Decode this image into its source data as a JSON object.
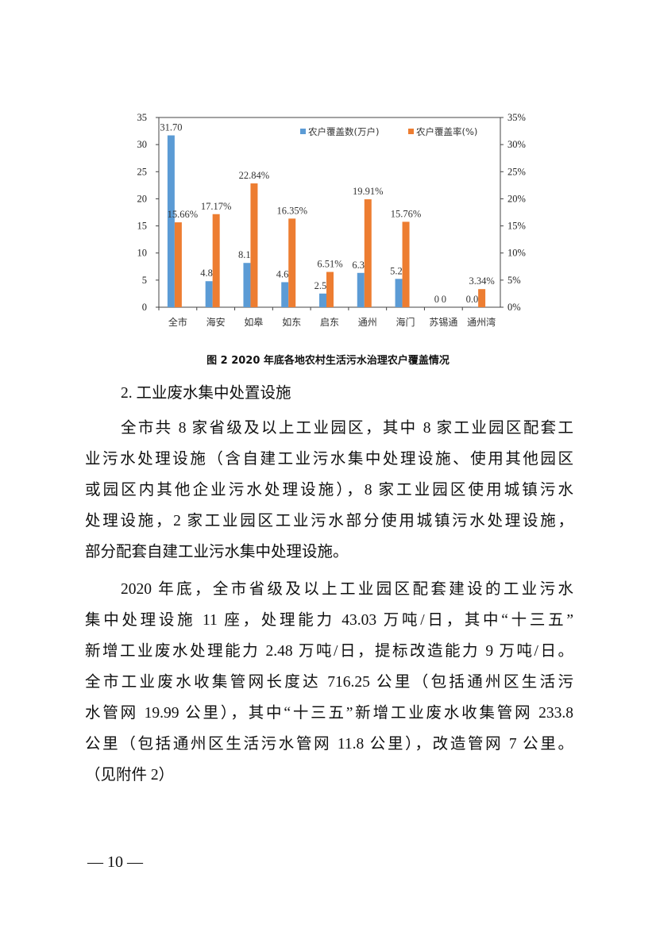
{
  "chart_data": {
    "type": "bar",
    "categories": [
      "全市",
      "海安",
      "如皋",
      "如东",
      "启东",
      "通州",
      "海门",
      "苏锡通",
      "通州湾"
    ],
    "series": [
      {
        "name": "农户覆盖数(万户)",
        "axis": "left",
        "color": "#5B9BD5",
        "values": [
          31.7,
          4.8,
          8.17,
          4.62,
          2.52,
          6.33,
          5.23,
          0,
          0.03
        ],
        "labels": [
          "31.70",
          "4.80",
          "8.17",
          "4.62",
          "2.52",
          "6.33",
          "5.23",
          "0",
          "0.03"
        ]
      },
      {
        "name": "农户覆盖率(%)",
        "axis": "right",
        "color": "#ED7D31",
        "values": [
          15.66,
          17.17,
          22.84,
          16.35,
          6.51,
          19.91,
          15.76,
          0,
          3.34
        ],
        "labels": [
          "15.66%",
          "17.17%",
          "22.84%",
          "16.35%",
          "6.51%",
          "19.91%",
          "15.76%",
          "0",
          "3.34%"
        ]
      }
    ],
    "ylim_left": [
      0,
      35
    ],
    "yticks_left": [
      "0",
      "5",
      "10",
      "15",
      "20",
      "25",
      "30",
      "35"
    ],
    "ylim_right": [
      0,
      35
    ],
    "yticks_right": [
      "0%",
      "5%",
      "10%",
      "15%",
      "20%",
      "25%",
      "30%",
      "35%"
    ],
    "legend": "top-right",
    "grid": false,
    "title": "图 2 2020 年底各地农村生活污水治理农户覆盖情况"
  },
  "section": {
    "heading": "2.  工业废水集中处置设施",
    "paragraphs": [
      {
        "lines": [
          "全市共 8 家省级及以上工业园区，其中 8 家工业园区配套工",
          "业污水处理设施（含自建工业污水集中处理设施、使用其他园区",
          "或园区内其他企业污水处理设施），8 家工业园区使用城镇污水",
          "处理设施，2 家工业园区工业污水部分使用城镇污水处理设施，",
          "部分配套自建工业污水集中处理设施。"
        ]
      },
      {
        "lines": [
          "2020 年底，全市省级及以上工业园区配套建设的工业污水",
          "集中处理设施 11 座，处理能力 43.03 万吨/日，其中“十三五”",
          "新增工业废水处理能力 2.48 万吨/日，提标改造能力 9 万吨/日。",
          "全市工业废水收集管网长度达 716.25 公里（包括通州区生活污",
          "水管网 19.99 公里），其中“十三五”新增工业废水收集管网 233.8",
          "公里（包括通州区生活污水管网 11.8 公里），改造管网 7 公里。",
          "（见附件 2）"
        ]
      }
    ]
  },
  "page_number": "— 10 —"
}
